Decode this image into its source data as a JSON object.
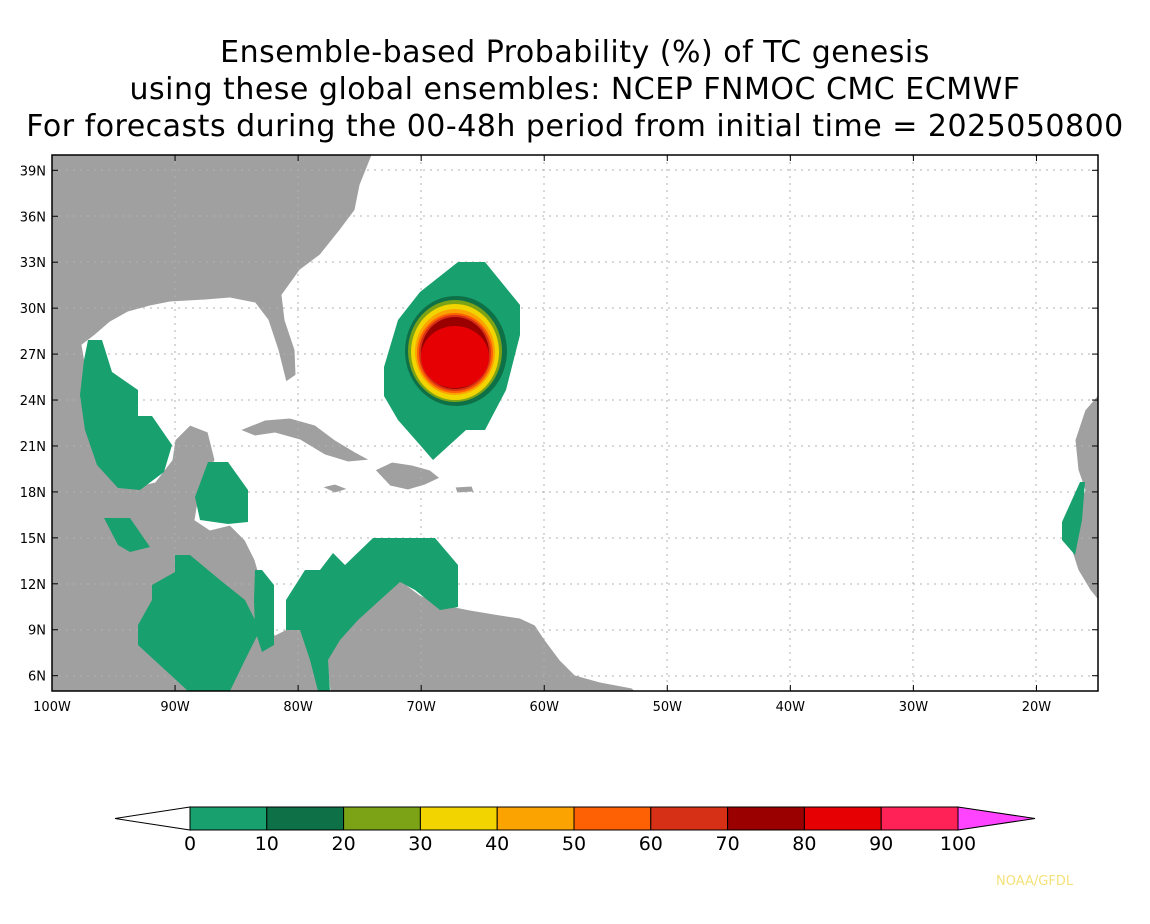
{
  "title": {
    "line1": "Ensemble-based Probability (%) of TC genesis",
    "line2": "using these global ensembles:   NCEP FNMOC CMC ECMWF",
    "line3": "For forecasts during the 00-48h period from initial time = 2025050800"
  },
  "map": {
    "lon_range": [
      -100,
      -15
    ],
    "lat_range": [
      5,
      40
    ],
    "lat_ticks": [
      {
        "v": 39,
        "label": "39N"
      },
      {
        "v": 36,
        "label": "36N"
      },
      {
        "v": 33,
        "label": "33N"
      },
      {
        "v": 30,
        "label": "30N"
      },
      {
        "v": 27,
        "label": "27N"
      },
      {
        "v": 24,
        "label": "24N"
      },
      {
        "v": 21,
        "label": "21N"
      },
      {
        "v": 18,
        "label": "18N"
      },
      {
        "v": 15,
        "label": "15N"
      },
      {
        "v": 12,
        "label": "12N"
      },
      {
        "v": 9,
        "label": "9N"
      },
      {
        "v": 6,
        "label": "6N"
      }
    ],
    "lon_ticks": [
      {
        "v": -100,
        "label": "100W"
      },
      {
        "v": -90,
        "label": "90W"
      },
      {
        "v": -80,
        "label": "80W"
      },
      {
        "v": -70,
        "label": "70W"
      },
      {
        "v": -60,
        "label": "60W"
      },
      {
        "v": -50,
        "label": "50W"
      },
      {
        "v": -40,
        "label": "40W"
      },
      {
        "v": -30,
        "label": "30W"
      },
      {
        "v": -20,
        "label": "20W"
      }
    ],
    "land_color": "#a0a0a0",
    "grid": true,
    "genesis_center": {
      "lon": -67.3,
      "lat": 26.7
    }
  },
  "colorbar": {
    "ticks": [
      "0",
      "10",
      "20",
      "30",
      "40",
      "50",
      "60",
      "70",
      "80",
      "90",
      "100"
    ],
    "colors": [
      "#18a06e",
      "#0e7047",
      "#7ca316",
      "#f2d500",
      "#fba300",
      "#fe6104",
      "#d63016",
      "#9a0000",
      "#e60003",
      "#ff2257"
    ],
    "under_color": "#ffffff",
    "over_color": "#ff44ff"
  },
  "credit": "NOAA/GFDL"
}
